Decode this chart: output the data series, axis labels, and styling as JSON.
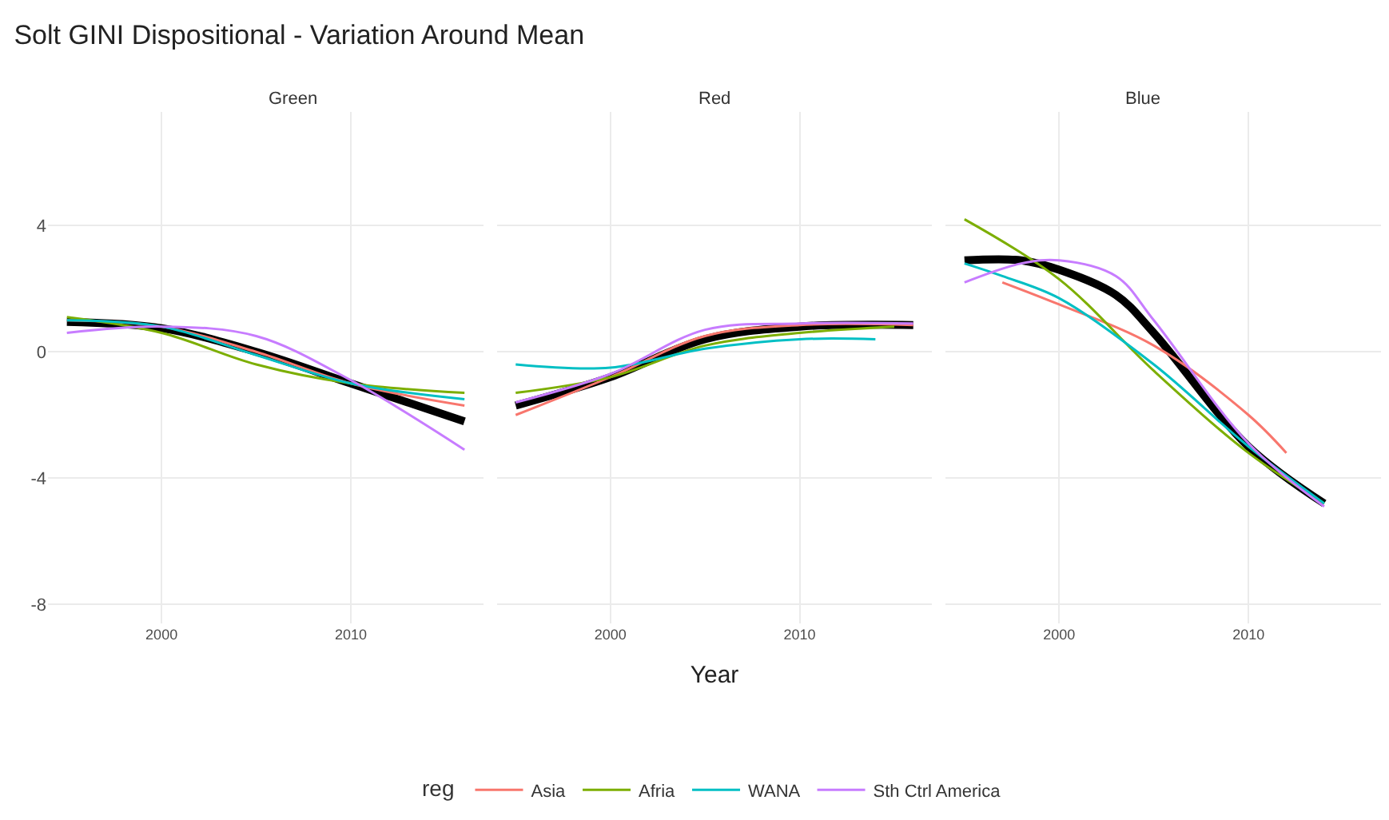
{
  "chart_data": [
    {
      "type": "line",
      "title": "Solt GINI Dispositional - Variation Around Mean",
      "subtitle": "Green",
      "legend": "bottom",
      "legend_title": "reg",
      "grid": true,
      "line_style": "solid",
      "marker": "none",
      "xlim": [
        1994,
        2017
      ],
      "xticks": [
        2000,
        2010
      ],
      "ylim": [
        -8.6,
        7.6
      ],
      "yticks": [
        -8,
        -4,
        0,
        4
      ],
      "series": [
        {
          "name": "Asia",
          "color": "#f8766d",
          "x": [
            1995,
            2000,
            2005,
            2010,
            2016
          ],
          "values": [
            1.0,
            0.8,
            0.0,
            -1.0,
            -1.7
          ]
        },
        {
          "name": "Afria",
          "color": "#7cae00",
          "x": [
            1995,
            2000,
            2005,
            2010,
            2016
          ],
          "values": [
            1.1,
            0.6,
            -0.4,
            -1.0,
            -1.3
          ]
        },
        {
          "name": "WANA",
          "color": "#00bfc4",
          "x": [
            1995,
            2000,
            2005,
            2010,
            2016
          ],
          "values": [
            1.0,
            0.8,
            -0.1,
            -1.0,
            -1.5
          ]
        },
        {
          "name": "Sth Ctrl America",
          "color": "#c77cff",
          "x": [
            1995,
            2000,
            2005,
            2010,
            2016
          ],
          "values": [
            0.6,
            0.8,
            0.5,
            -0.9,
            -3.1
          ]
        },
        {
          "color": "#000000",
          "x": [
            1995,
            2000,
            2005,
            2010,
            2016
          ],
          "values": [
            0.95,
            0.75,
            0.0,
            -1.0,
            -2.2
          ]
        }
      ]
    },
    {
      "type": "line",
      "subtitle": "Red",
      "xlabel": "Year",
      "grid": true,
      "line_style": "solid",
      "marker": "none",
      "tick_labels": "x",
      "xlim": [
        1994,
        2017
      ],
      "xticks": [
        2000,
        2010
      ],
      "ylim": [
        -8.6,
        7.6
      ],
      "series": [
        {
          "name": "Asia",
          "color": "#f8766d",
          "x": [
            1995,
            2000,
            2005,
            2010,
            2016
          ],
          "values": [
            -2.0,
            -0.8,
            0.5,
            0.85,
            0.85
          ]
        },
        {
          "name": "Afria",
          "color": "#7cae00",
          "x": [
            1995,
            2000,
            2005,
            2010,
            2015
          ],
          "values": [
            -1.3,
            -0.8,
            0.2,
            0.6,
            0.8
          ]
        },
        {
          "name": "WANA",
          "color": "#00bfc4",
          "x": [
            1995,
            2000,
            2005,
            2010,
            2014
          ],
          "values": [
            -0.4,
            -0.5,
            0.1,
            0.4,
            0.4
          ]
        },
        {
          "name": "Sth Ctrl America",
          "color": "#c77cff",
          "x": [
            1995,
            2000,
            2005,
            2010,
            2016
          ],
          "values": [
            -1.6,
            -0.7,
            0.7,
            0.9,
            0.9
          ]
        },
        {
          "color": "#000000",
          "x": [
            1995,
            2000,
            2005,
            2010,
            2016
          ],
          "values": [
            -1.7,
            -0.8,
            0.4,
            0.8,
            0.85
          ]
        }
      ]
    },
    {
      "type": "line",
      "subtitle": "Blue",
      "grid": true,
      "line_style": "solid",
      "marker": "none",
      "tick_labels": "x",
      "xlim": [
        1994,
        2017
      ],
      "xticks": [
        2000,
        2010
      ],
      "ylim": [
        -8.6,
        7.6
      ],
      "series": [
        {
          "name": "Asia",
          "color": "#f8766d",
          "x": [
            1997,
            2000,
            2005,
            2010,
            2012
          ],
          "values": [
            2.2,
            1.5,
            0.2,
            -2.0,
            -3.2
          ]
        },
        {
          "name": "Afria",
          "color": "#7cae00",
          "x": [
            1995,
            2000,
            2005,
            2010,
            2014
          ],
          "values": [
            4.2,
            2.3,
            -0.6,
            -3.2,
            -4.8
          ]
        },
        {
          "name": "WANA",
          "color": "#00bfc4",
          "x": [
            1995,
            1997,
            2000,
            2005,
            2010,
            2014
          ],
          "values": [
            2.8,
            2.4,
            1.7,
            -0.4,
            -3.0,
            -4.8
          ]
        },
        {
          "name": "Sth Ctrl America",
          "color": "#c77cff",
          "x": [
            1995,
            1998,
            2000,
            2003,
            2005,
            2010,
            2014
          ],
          "values": [
            2.2,
            2.8,
            2.9,
            2.4,
            1.0,
            -2.9,
            -4.9
          ]
        },
        {
          "color": "#000000",
          "x": [
            1995,
            1998,
            2000,
            2003,
            2005,
            2010,
            2014
          ],
          "values": [
            2.9,
            2.9,
            2.6,
            1.8,
            0.6,
            -3.0,
            -4.8
          ]
        }
      ]
    }
  ]
}
